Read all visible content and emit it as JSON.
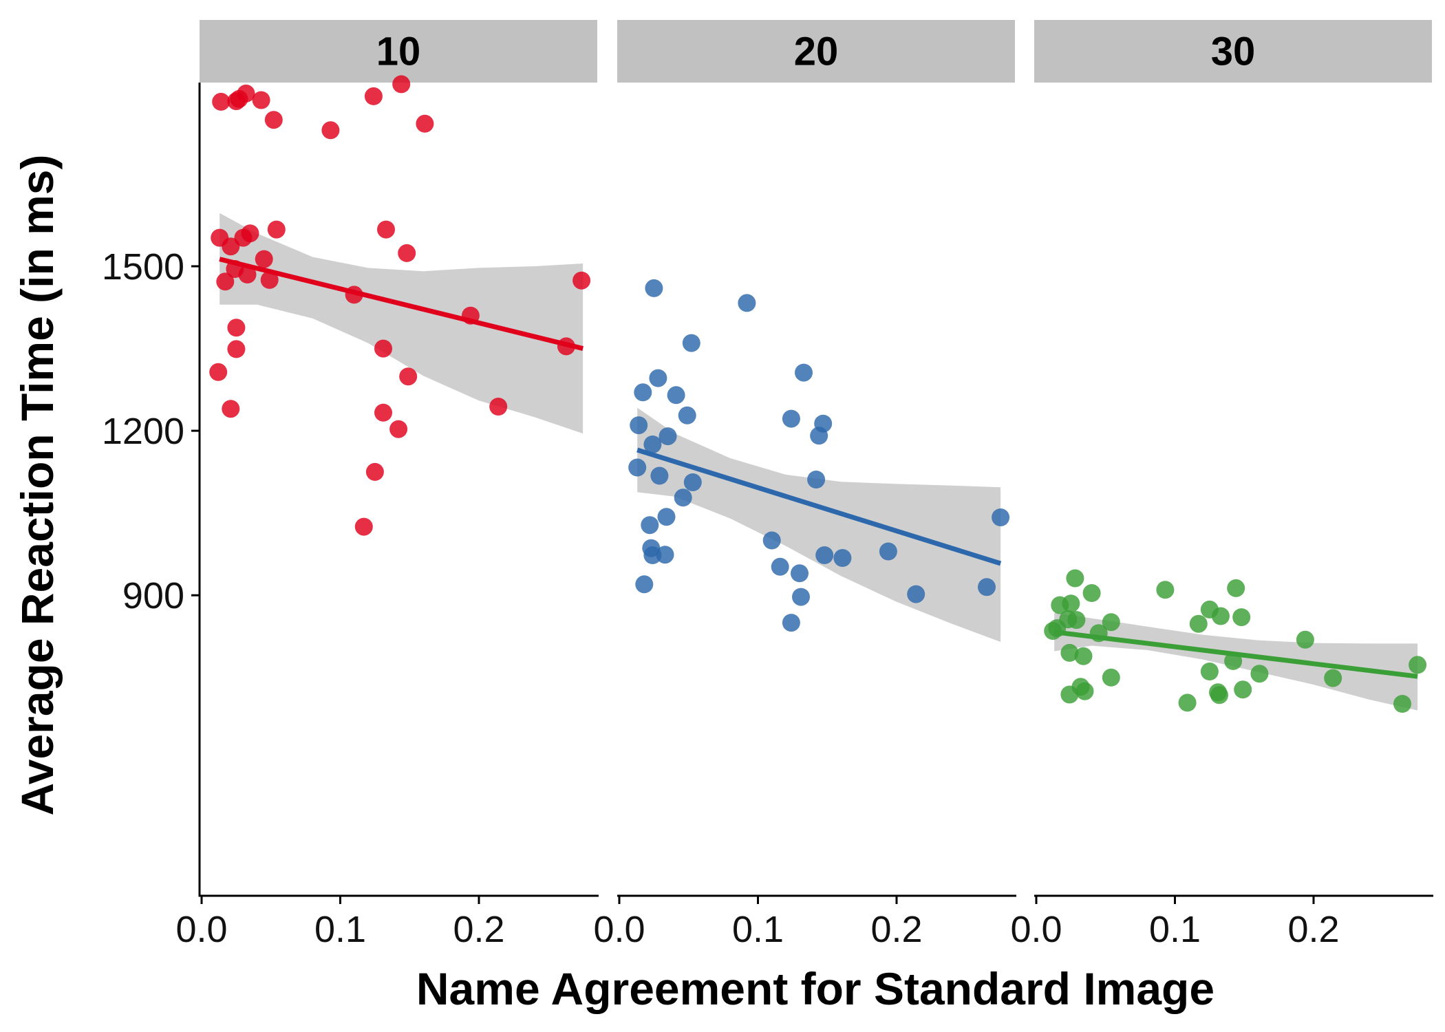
{
  "chart_data": {
    "type": "scatter",
    "xlabel": "Name Agreement for Standard Image",
    "ylabel": "Average Reaction Time (in ms)",
    "xlim": [
      0.0,
      0.28
    ],
    "ylim": [
      700,
      1950
    ],
    "x_ticks": [
      "0.0",
      "0.1",
      "0.2"
    ],
    "x_tick_values": [
      0.0,
      0.1,
      0.2
    ],
    "y_ticks": [
      "900",
      "1200",
      "1500"
    ],
    "y_tick_values": [
      900,
      1200,
      1500
    ],
    "grid": false,
    "legend": "none",
    "overlay": "linear regression line with 95% confidence band",
    "band_color": "#cccccc",
    "panels": [
      {
        "facet_label": "10",
        "color": "#e0001b",
        "fit": {
          "x0": 0.013,
          "y0": 1513,
          "x1": 0.275,
          "y1": 1350
        },
        "band": {
          "x": [
            0.013,
            0.04,
            0.08,
            0.12,
            0.16,
            0.2,
            0.24,
            0.275
          ],
          "upper": [
            1597,
            1560,
            1517,
            1497,
            1491,
            1497,
            1500,
            1505
          ],
          "lower": [
            1430,
            1430,
            1405,
            1360,
            1300,
            1255,
            1225,
            1195
          ]
        },
        "points": [
          {
            "x": 0.014,
            "y": 1800
          },
          {
            "x": 0.025,
            "y": 1801
          },
          {
            "x": 0.032,
            "y": 1815
          },
          {
            "x": 0.027,
            "y": 1805
          },
          {
            "x": 0.043,
            "y": 1803
          },
          {
            "x": 0.144,
            "y": 1832
          },
          {
            "x": 0.124,
            "y": 1810
          },
          {
            "x": 0.052,
            "y": 1767
          },
          {
            "x": 0.161,
            "y": 1760
          },
          {
            "x": 0.093,
            "y": 1748
          },
          {
            "x": 0.013,
            "y": 1552
          },
          {
            "x": 0.021,
            "y": 1536
          },
          {
            "x": 0.03,
            "y": 1552
          },
          {
            "x": 0.035,
            "y": 1560
          },
          {
            "x": 0.054,
            "y": 1567
          },
          {
            "x": 0.133,
            "y": 1567
          },
          {
            "x": 0.045,
            "y": 1513
          },
          {
            "x": 0.148,
            "y": 1524
          },
          {
            "x": 0.024,
            "y": 1495
          },
          {
            "x": 0.033,
            "y": 1485
          },
          {
            "x": 0.017,
            "y": 1472
          },
          {
            "x": 0.049,
            "y": 1475
          },
          {
            "x": 0.274,
            "y": 1474
          },
          {
            "x": 0.11,
            "y": 1448
          },
          {
            "x": 0.194,
            "y": 1410
          },
          {
            "x": 0.025,
            "y": 1388
          },
          {
            "x": 0.025,
            "y": 1349
          },
          {
            "x": 0.131,
            "y": 1350
          },
          {
            "x": 0.263,
            "y": 1354
          },
          {
            "x": 0.012,
            "y": 1307
          },
          {
            "x": 0.149,
            "y": 1299
          },
          {
            "x": 0.021,
            "y": 1240
          },
          {
            "x": 0.214,
            "y": 1244
          },
          {
            "x": 0.131,
            "y": 1233
          },
          {
            "x": 0.142,
            "y": 1203
          },
          {
            "x": 0.125,
            "y": 1125
          },
          {
            "x": 0.117,
            "y": 1025
          }
        ]
      },
      {
        "facet_label": "20",
        "color": "#2c68ab",
        "fit": {
          "x0": 0.013,
          "y0": 1165,
          "x1": 0.275,
          "y1": 958
        },
        "band": {
          "x": [
            0.013,
            0.04,
            0.08,
            0.12,
            0.16,
            0.2,
            0.24,
            0.275
          ],
          "upper": [
            1242,
            1195,
            1150,
            1120,
            1107,
            1103,
            1100,
            1097
          ],
          "lower": [
            1088,
            1080,
            1040,
            990,
            935,
            888,
            848,
            815
          ]
        },
        "points": [
          {
            "x": 0.025,
            "y": 1460
          },
          {
            "x": 0.092,
            "y": 1433
          },
          {
            "x": 0.052,
            "y": 1360
          },
          {
            "x": 0.133,
            "y": 1306
          },
          {
            "x": 0.028,
            "y": 1296
          },
          {
            "x": 0.017,
            "y": 1270
          },
          {
            "x": 0.041,
            "y": 1265
          },
          {
            "x": 0.049,
            "y": 1228
          },
          {
            "x": 0.124,
            "y": 1222
          },
          {
            "x": 0.147,
            "y": 1213
          },
          {
            "x": 0.014,
            "y": 1210
          },
          {
            "x": 0.144,
            "y": 1191
          },
          {
            "x": 0.035,
            "y": 1190
          },
          {
            "x": 0.024,
            "y": 1175
          },
          {
            "x": 0.013,
            "y": 1133
          },
          {
            "x": 0.029,
            "y": 1118
          },
          {
            "x": 0.142,
            "y": 1111
          },
          {
            "x": 0.053,
            "y": 1106
          },
          {
            "x": 0.046,
            "y": 1078
          },
          {
            "x": 0.275,
            "y": 1042
          },
          {
            "x": 0.034,
            "y": 1043
          },
          {
            "x": 0.022,
            "y": 1028
          },
          {
            "x": 0.11,
            "y": 1000
          },
          {
            "x": 0.023,
            "y": 986
          },
          {
            "x": 0.194,
            "y": 980
          },
          {
            "x": 0.024,
            "y": 973
          },
          {
            "x": 0.033,
            "y": 974
          },
          {
            "x": 0.148,
            "y": 973
          },
          {
            "x": 0.161,
            "y": 968
          },
          {
            "x": 0.116,
            "y": 952
          },
          {
            "x": 0.13,
            "y": 940
          },
          {
            "x": 0.018,
            "y": 920
          },
          {
            "x": 0.265,
            "y": 915
          },
          {
            "x": 0.214,
            "y": 902
          },
          {
            "x": 0.131,
            "y": 897
          },
          {
            "x": 0.124,
            "y": 850
          }
        ]
      },
      {
        "facet_label": "30",
        "color": "#3a9f36",
        "fit": {
          "x0": 0.013,
          "y0": 833,
          "x1": 0.275,
          "y1": 752
        },
        "band": {
          "x": [
            0.013,
            0.04,
            0.08,
            0.12,
            0.16,
            0.2,
            0.24,
            0.275
          ],
          "upper": [
            868,
            858,
            843,
            828,
            818,
            813,
            812,
            812
          ],
          "lower": [
            798,
            808,
            800,
            783,
            760,
            737,
            710,
            690
          ]
        },
        "points": [
          {
            "x": 0.028,
            "y": 931
          },
          {
            "x": 0.093,
            "y": 910
          },
          {
            "x": 0.144,
            "y": 913
          },
          {
            "x": 0.04,
            "y": 904
          },
          {
            "x": 0.017,
            "y": 882
          },
          {
            "x": 0.025,
            "y": 885
          },
          {
            "x": 0.125,
            "y": 874
          },
          {
            "x": 0.133,
            "y": 862
          },
          {
            "x": 0.148,
            "y": 860
          },
          {
            "x": 0.023,
            "y": 856
          },
          {
            "x": 0.029,
            "y": 855
          },
          {
            "x": 0.054,
            "y": 851
          },
          {
            "x": 0.117,
            "y": 848
          },
          {
            "x": 0.015,
            "y": 840
          },
          {
            "x": 0.012,
            "y": 835
          },
          {
            "x": 0.045,
            "y": 831
          },
          {
            "x": 0.194,
            "y": 819
          },
          {
            "x": 0.024,
            "y": 795
          },
          {
            "x": 0.034,
            "y": 789
          },
          {
            "x": 0.142,
            "y": 780
          },
          {
            "x": 0.275,
            "y": 773
          },
          {
            "x": 0.125,
            "y": 761
          },
          {
            "x": 0.161,
            "y": 757
          },
          {
            "x": 0.054,
            "y": 750
          },
          {
            "x": 0.214,
            "y": 749
          },
          {
            "x": 0.032,
            "y": 733
          },
          {
            "x": 0.035,
            "y": 725
          },
          {
            "x": 0.131,
            "y": 723
          },
          {
            "x": 0.149,
            "y": 728
          },
          {
            "x": 0.024,
            "y": 719
          },
          {
            "x": 0.132,
            "y": 718
          },
          {
            "x": 0.109,
            "y": 704
          },
          {
            "x": 0.264,
            "y": 702
          }
        ]
      }
    ]
  }
}
